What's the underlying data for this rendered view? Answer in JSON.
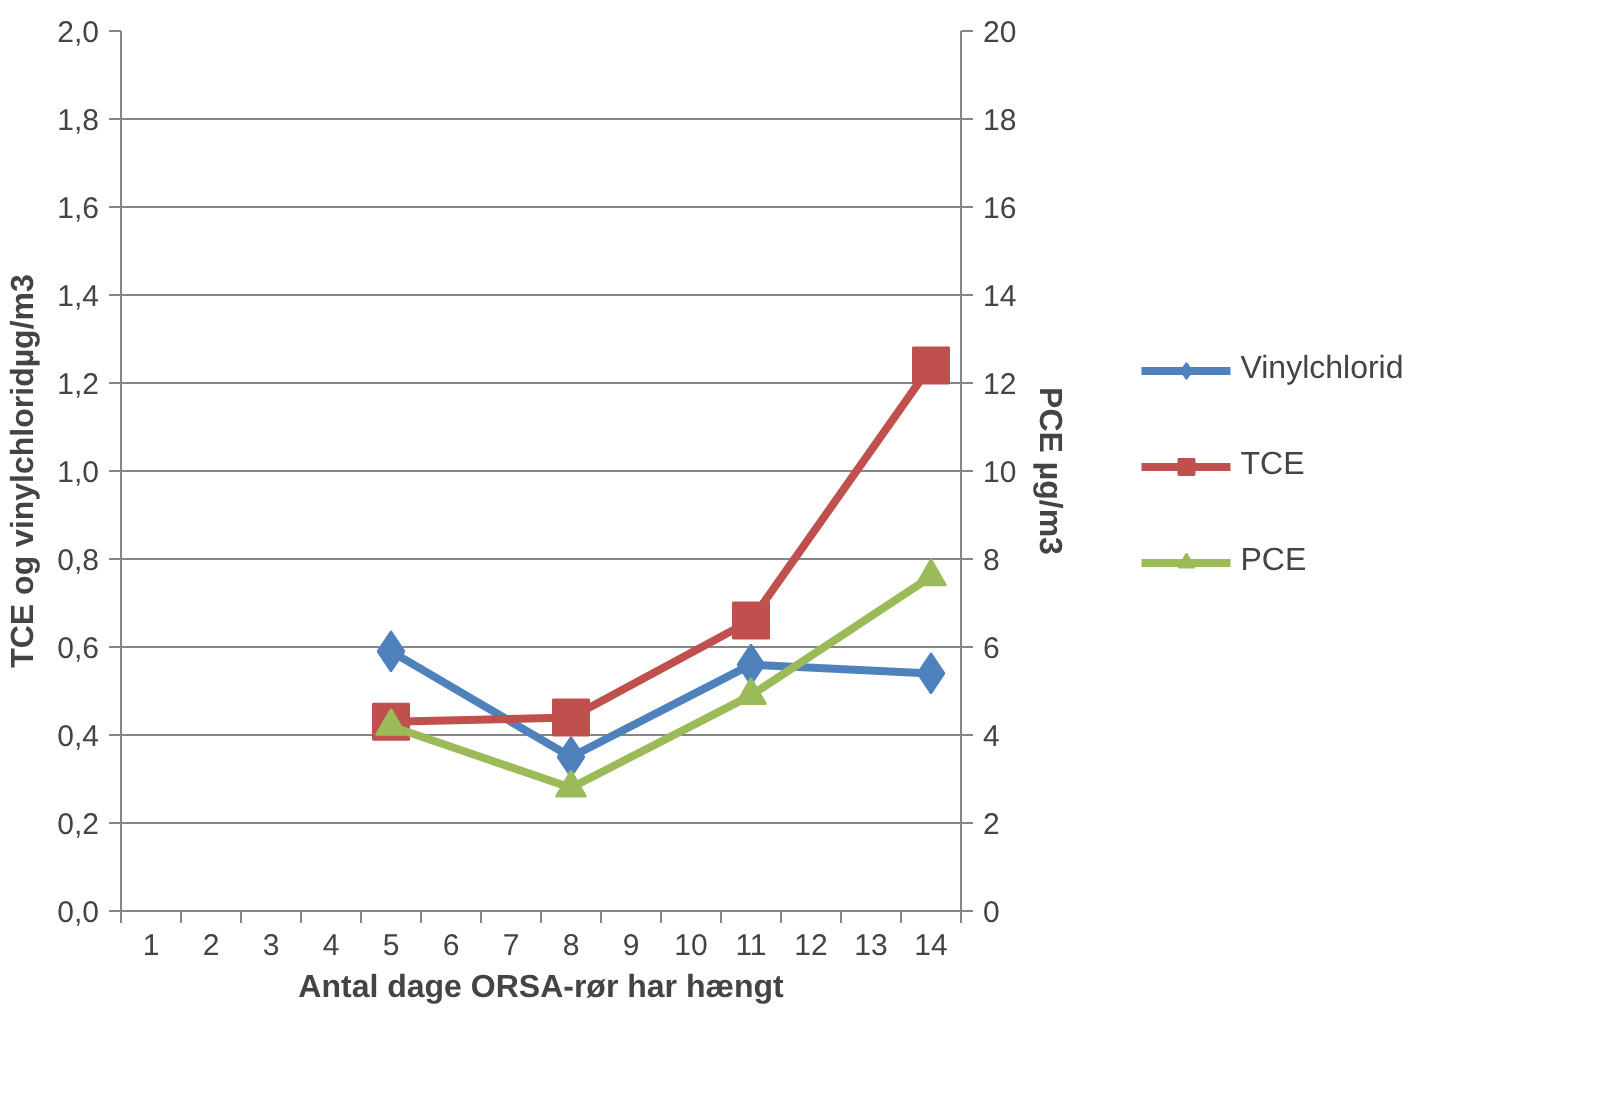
{
  "chart_data": {
    "type": "line",
    "xlabel": "Antal dage ORSA-rør har hængt",
    "ylabel": "TCE og vinylchloridµg/m3",
    "y2label": "PCE µg/m3",
    "xlim": [
      0.5,
      14.5
    ],
    "xticks": [
      1,
      2,
      3,
      4,
      5,
      6,
      7,
      8,
      9,
      10,
      11,
      12,
      13,
      14
    ],
    "ylim": [
      0,
      2
    ],
    "yticks": [
      {
        "value": 0,
        "label": "0,0"
      },
      {
        "value": 0.2,
        "label": "0,2"
      },
      {
        "value": 0.4,
        "label": "0,4"
      },
      {
        "value": 0.6,
        "label": "0,6"
      },
      {
        "value": 0.8,
        "label": "0,8"
      },
      {
        "value": 1.0,
        "label": "1,0"
      },
      {
        "value": 1.2,
        "label": "1,2"
      },
      {
        "value": 1.4,
        "label": "1,4"
      },
      {
        "value": 1.6,
        "label": "1,6"
      },
      {
        "value": 1.8,
        "label": "1,8"
      },
      {
        "value": 2.0,
        "label": "2,0"
      }
    ],
    "y2lim": [
      0,
      20
    ],
    "y2ticks": [
      0,
      2,
      4,
      6,
      8,
      10,
      12,
      14,
      16,
      18,
      20
    ],
    "grid": "y",
    "legend": "right",
    "series": [
      {
        "name": "Vinylchlorid",
        "color": "#4f81bd",
        "marker": "diamond",
        "x": [
          5,
          8,
          11,
          14
        ],
        "values": [
          0.59,
          0.35,
          0.56,
          0.54
        ]
      },
      {
        "name": "TCE",
        "color": "#c0504d",
        "marker": "square",
        "x": [
          5,
          8,
          11,
          14
        ],
        "values": [
          0.43,
          0.44,
          0.66,
          1.24
        ]
      },
      {
        "name": "PCE",
        "color": "#9bbb59",
        "marker": "triangle",
        "axis": "y2",
        "x": [
          5,
          8,
          11,
          14
        ],
        "values": [
          4.2,
          2.8,
          4.9,
          7.6
        ]
      }
    ]
  }
}
